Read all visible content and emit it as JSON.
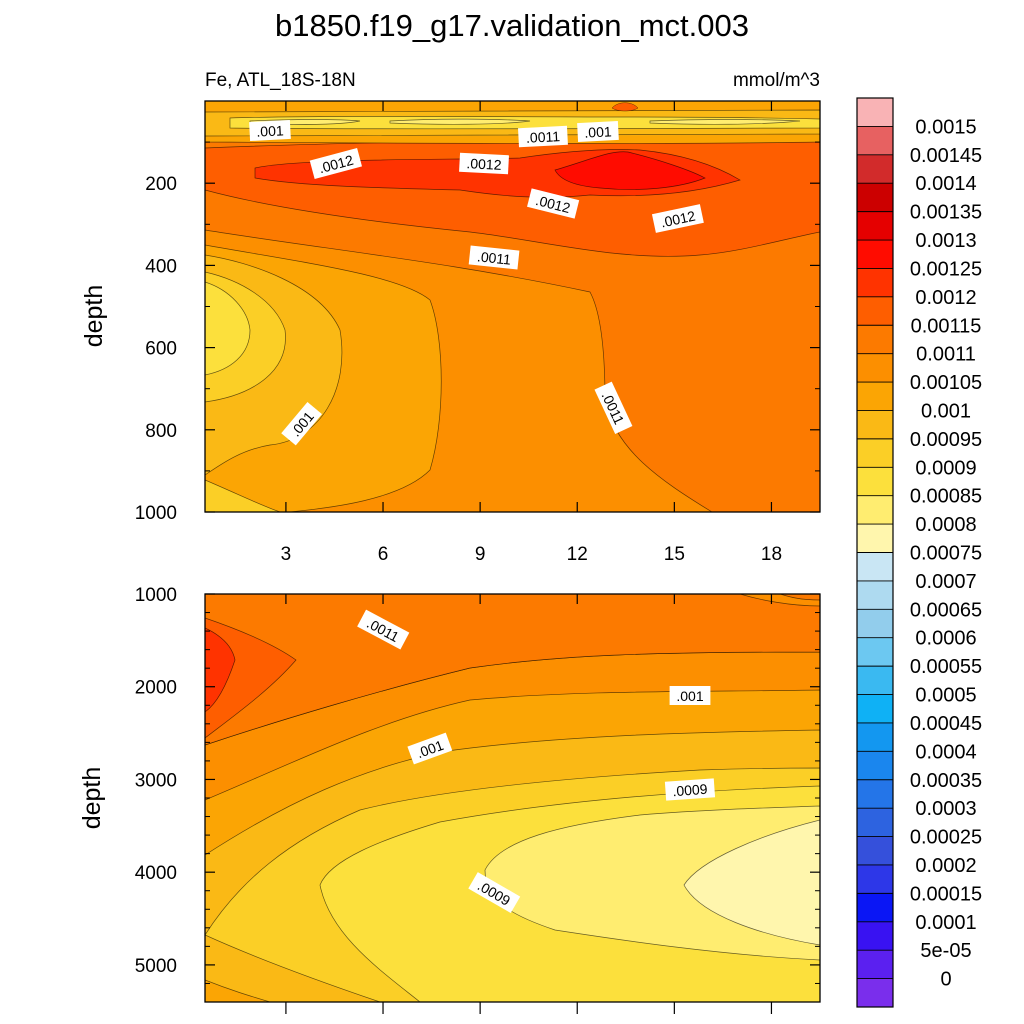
{
  "chart_data": {
    "type": "contour",
    "title": "b1850.f19_g17.validation_mct.003",
    "variable_label": "Fe, ATL_18S-18N",
    "units": "mmol/m^3",
    "colorbar": {
      "labels": [
        "0.0015",
        "0.00145",
        "0.0014",
        "0.00135",
        "0.0013",
        "0.00125",
        "0.0012",
        "0.00115",
        "0.0011",
        "0.00105",
        "0.001",
        "0.00095",
        "0.0009",
        "0.00085",
        "0.0008",
        "0.00075",
        "0.0007",
        "0.00065",
        "0.0006",
        "0.00055",
        "0.0005",
        "0.00045",
        "0.0004",
        "0.00035",
        "0.0003",
        "0.00025",
        "0.0002",
        "0.00015",
        "0.0001",
        "5e-05",
        "0"
      ],
      "colors": [
        "#F9B3B5",
        "#E76161",
        "#D22B2B",
        "#CC0000",
        "#E50000",
        "#FF0C00",
        "#FF3300",
        "#FE5E00",
        "#FC7A00",
        "#FC8F00",
        "#FBA504",
        "#FAB915",
        "#FBCF26",
        "#FCE03C",
        "#FFED70",
        "#FFF6AD",
        "#C9E6F4",
        "#AEDAF0",
        "#92CDEC",
        "#6CC8F1",
        "#3AB9F1",
        "#0FB1F5",
        "#1397F0",
        "#1A86EE",
        "#2475E8",
        "#2D63E0",
        "#3550DB",
        "#2D37E8",
        "#0A16F5",
        "#3912F2",
        "#5B20F0",
        "#7A2EEC"
      ]
    },
    "panels": [
      {
        "name": "upper",
        "ylabel": "depth",
        "y_range": [
          0,
          1000
        ],
        "y_ticks": [
          "200",
          "400",
          "600",
          "800",
          "1000"
        ],
        "x_ticks": [
          "3",
          "6",
          "9",
          "12",
          "15",
          "18"
        ],
        "contour_labels": [
          ".001",
          ".0011",
          ".001",
          ".0012",
          ".0012",
          ".0012",
          ".0012",
          ".0011",
          ".001",
          ".0011"
        ]
      },
      {
        "name": "lower",
        "ylabel": "depth",
        "y_range": [
          1000,
          5400
        ],
        "y_ticks": [
          "1000",
          "2000",
          "3000",
          "4000",
          "5000"
        ],
        "contour_labels": [
          ".0011",
          ".001",
          ".001",
          ".0009",
          ".0009"
        ]
      }
    ]
  }
}
